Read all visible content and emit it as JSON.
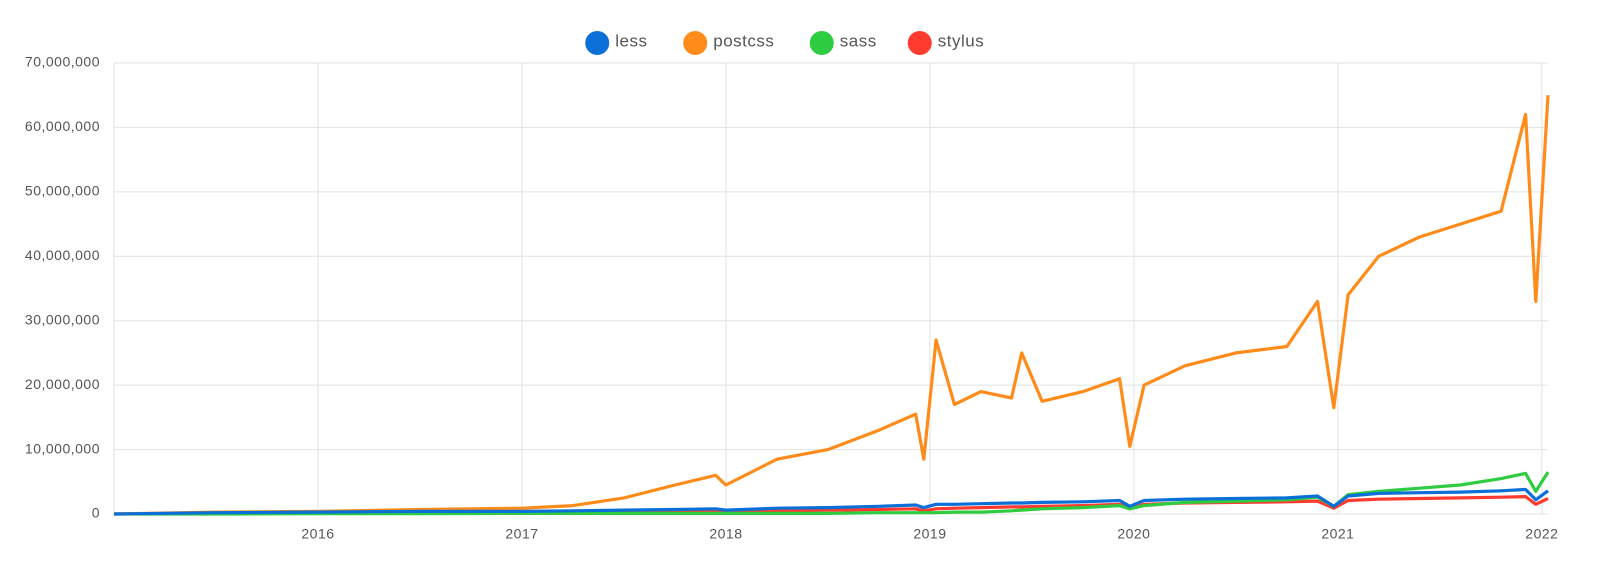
{
  "chart_data": {
    "type": "line",
    "x": [
      2015.0,
      2015.5,
      2016.0,
      2016.5,
      2017.0,
      2017.25,
      2017.5,
      2017.75,
      2017.95,
      2018.0,
      2018.25,
      2018.5,
      2018.75,
      2018.93,
      2018.97,
      2019.03,
      2019.12,
      2019.25,
      2019.4,
      2019.45,
      2019.55,
      2019.75,
      2019.93,
      2019.98,
      2020.05,
      2020.25,
      2020.5,
      2020.75,
      2020.9,
      2020.98,
      2021.05,
      2021.2,
      2021.4,
      2021.6,
      2021.8,
      2021.92,
      2021.97,
      2022.03
    ],
    "series": [
      {
        "name": "less",
        "color": "#0b6fd8",
        "values": [
          0,
          200000,
          300000,
          400000,
          400000,
          500000,
          600000,
          700000,
          800000,
          600000,
          900000,
          1000000,
          1200000,
          1400000,
          1000000,
          1500000,
          1500000,
          1600000,
          1700000,
          1700000,
          1800000,
          1900000,
          2100000,
          1200000,
          2100000,
          2300000,
          2400000,
          2500000,
          2800000,
          1200000,
          2800000,
          3200000,
          3300000,
          3400000,
          3600000,
          3800000,
          2200000,
          3600000
        ]
      },
      {
        "name": "postcss",
        "color": "#ff8c1a",
        "values": [
          0,
          300000,
          400000,
          700000,
          900000,
          1300000,
          2500000,
          4500000,
          6000000,
          4500000,
          8500000,
          10000000,
          13000000,
          15500000,
          8500000,
          27000000,
          17000000,
          19000000,
          18000000,
          25000000,
          17500000,
          19000000,
          21000000,
          10500000,
          20000000,
          23000000,
          25000000,
          26000000,
          33000000,
          16500000,
          34000000,
          40000000,
          43000000,
          45000000,
          47000000,
          62000000,
          33000000,
          65000000
        ]
      },
      {
        "name": "sass",
        "color": "#2ecc40",
        "values": [
          0,
          0,
          50000,
          50000,
          100000,
          100000,
          100000,
          100000,
          100000,
          100000,
          100000,
          100000,
          200000,
          200000,
          200000,
          200000,
          300000,
          300000,
          500000,
          600000,
          800000,
          1000000,
          1300000,
          800000,
          1300000,
          1800000,
          2000000,
          2200000,
          2600000,
          1200000,
          3000000,
          3500000,
          4000000,
          4500000,
          5500000,
          6300000,
          3500000,
          6500000
        ]
      },
      {
        "name": "stylus",
        "color": "#ff3b30",
        "values": [
          0,
          100000,
          200000,
          300000,
          300000,
          300000,
          400000,
          400000,
          500000,
          300000,
          500000,
          600000,
          700000,
          800000,
          500000,
          800000,
          900000,
          1000000,
          1100000,
          1100000,
          1200000,
          1300000,
          1500000,
          800000,
          1500000,
          1700000,
          1800000,
          1900000,
          2000000,
          900000,
          2100000,
          2300000,
          2400000,
          2500000,
          2600000,
          2700000,
          1500000,
          2400000
        ]
      }
    ],
    "xlim": [
      2015.0,
      2022.03
    ],
    "xticks": [
      2016,
      2017,
      2018,
      2019,
      2020,
      2021,
      2022
    ],
    "ylim": [
      0,
      70000000
    ],
    "yticks": [
      0,
      {
        "value": 10000000,
        "label": "10,000,000"
      },
      {
        "value": 20000000,
        "label": "20,000,000"
      },
      {
        "value": 30000000,
        "label": "30,000,000"
      },
      {
        "value": 40000000,
        "label": "40,000,000"
      },
      {
        "value": 50000000,
        "label": "50,000,000"
      },
      {
        "value": 60000000,
        "label": "60,000,000"
      },
      {
        "value": 70000000,
        "label": "70,000,000"
      }
    ],
    "grid": true,
    "legend": "top"
  }
}
